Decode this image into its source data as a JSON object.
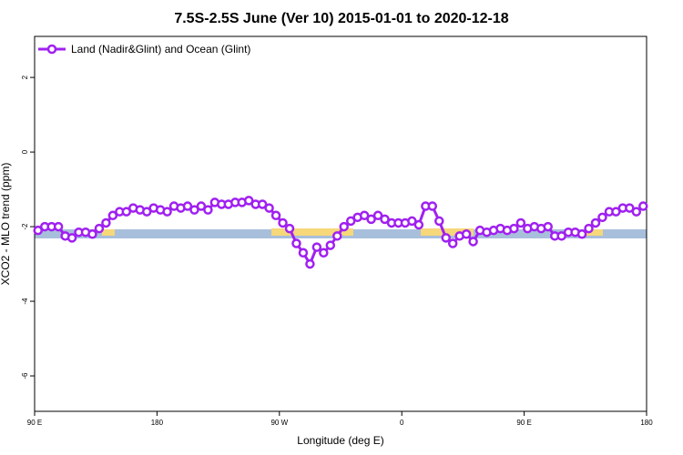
{
  "chart_data": {
    "type": "line",
    "title": "7.5S-2.5S June (Ver 10)   2015-01-01 to 2020-12-18",
    "x_label": "Longitude (deg E)",
    "y_label": "XCO2 - MLO trend (ppm)",
    "xlim": [
      90,
      540
    ],
    "ylim": [
      -6.95,
      3.1
    ],
    "xticks": [
      {
        "value": 90,
        "label": "90 E"
      },
      180,
      {
        "value": 270,
        "label": "90 W"
      },
      {
        "value": 360,
        "label": "0"
      },
      {
        "value": 450,
        "label": "90 E"
      },
      {
        "value": 540,
        "label": "180"
      }
    ],
    "yticks": [
      2,
      0,
      -2,
      -4,
      -6
    ],
    "legend_position": "top-left",
    "x": [
      92.5,
      97.5,
      102.5,
      107.5,
      112.5,
      117.5,
      122.5,
      127.5,
      132.5,
      137.5,
      142.5,
      147.5,
      152.5,
      157.5,
      162.5,
      167.5,
      172.5,
      177.5,
      182.5,
      187.5,
      192.5,
      197.5,
      202.5,
      207.5,
      212.5,
      217.5,
      222.5,
      227.5,
      232.5,
      237.5,
      242.5,
      247.5,
      252.5,
      257.5,
      262.5,
      267.5,
      272.5,
      277.5,
      282.5,
      287.5,
      292.5,
      297.5,
      302.5,
      307.5,
      312.5,
      317.5,
      322.5,
      327.5,
      332.5,
      337.5,
      342.5,
      347.5,
      352.5,
      357.5,
      362.5,
      367.5,
      372.5,
      377.5,
      382.5,
      387.5,
      392.5,
      397.5,
      402.5,
      407.5,
      412.5,
      417.5,
      422.5,
      427.5,
      432.5,
      437.5,
      442.5,
      447.5,
      452.5,
      457.5,
      462.5,
      467.5,
      472.5,
      477.5,
      482.5,
      487.5,
      492.5,
      497.5,
      502.5,
      507.5,
      512.5,
      517.5,
      522.5,
      527.5,
      532.5,
      537.5
    ],
    "series": [
      {
        "name": "Land (Nadir&Glint) and Ocean (Glint)",
        "color": "#a020f0",
        "values": [
          -2.1,
          -2.0,
          -2.0,
          -2.0,
          -2.25,
          -2.3,
          -2.15,
          -2.15,
          -2.2,
          -2.05,
          -1.9,
          -1.7,
          -1.6,
          -1.6,
          -1.5,
          -1.55,
          -1.6,
          -1.5,
          -1.55,
          -1.6,
          -1.45,
          -1.5,
          -1.45,
          -1.55,
          -1.45,
          -1.55,
          -1.35,
          -1.4,
          -1.4,
          -1.35,
          -1.35,
          -1.3,
          -1.4,
          -1.4,
          -1.5,
          -1.7,
          -1.9,
          -2.05,
          -2.45,
          -2.7,
          -3.0,
          -2.55,
          -2.7,
          -2.5,
          -2.25,
          -2.0,
          -1.85,
          -1.75,
          -1.7,
          -1.8,
          -1.7,
          -1.8,
          -1.9,
          -1.9,
          -1.9,
          -1.85,
          -1.95,
          -1.45,
          -1.45,
          -1.85,
          -2.3,
          -2.45,
          -2.25,
          -2.2,
          -2.4,
          -2.1,
          -2.15,
          -2.1,
          -2.05,
          -2.1,
          -2.05,
          -1.9,
          -2.05,
          -2.0,
          -2.05,
          -2.0,
          -2.25,
          -2.25,
          -2.15,
          -2.15,
          -2.2,
          -2.05,
          -1.9,
          -1.75,
          -1.6,
          -1.6,
          -1.5,
          -1.5,
          -1.6,
          -1.45
        ]
      }
    ]
  }
}
